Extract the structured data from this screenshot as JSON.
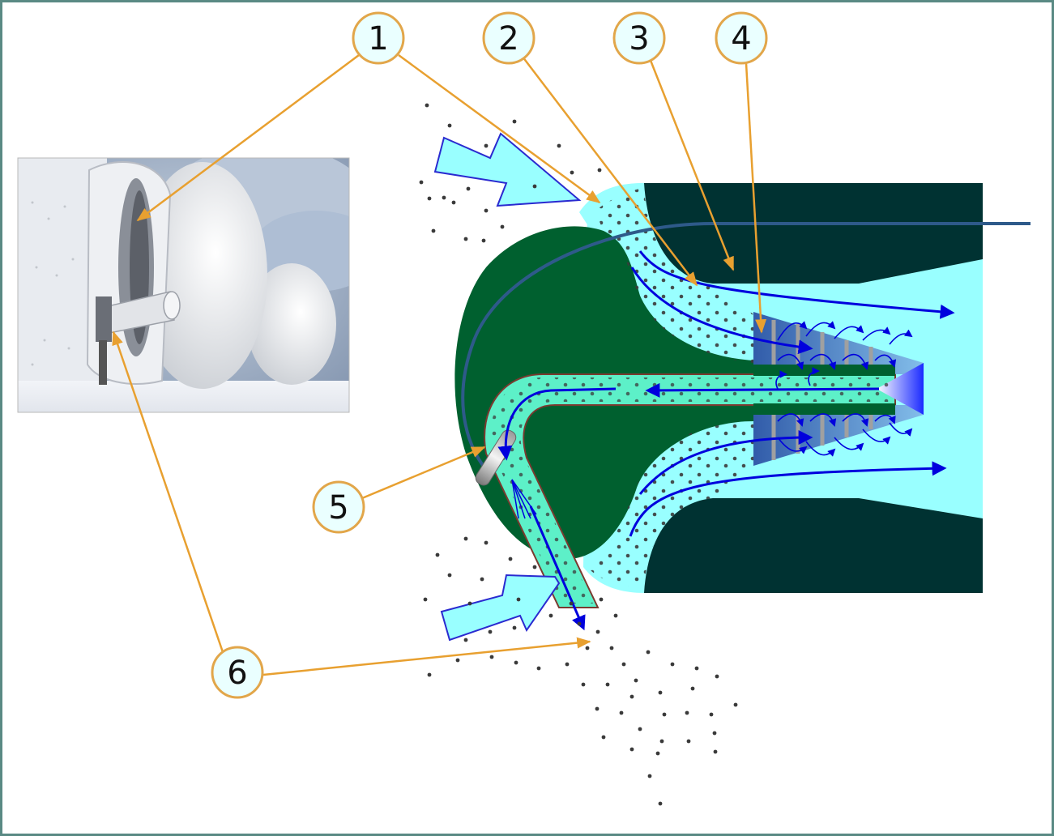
{
  "diagram": {
    "subject": "engine-air-intake-particle-separator",
    "callouts": [
      {
        "id": "c1",
        "label": "1"
      },
      {
        "id": "c2",
        "label": "2"
      },
      {
        "id": "c3",
        "label": "3"
      },
      {
        "id": "c4",
        "label": "4"
      },
      {
        "id": "c5",
        "label": "5"
      },
      {
        "id": "c6",
        "label": "6"
      }
    ],
    "colors": {
      "frame_border": "#5a8a84",
      "callout_fill": "#eaffff",
      "callout_stroke": "#e2a64a",
      "leader_line": "#e8a030",
      "engine_dark": "#003232",
      "hub_green": "#00602f",
      "air_cyan": "#99ffff",
      "duct_mint": "#5df0c8",
      "flow_arrow": "#0000dd",
      "particle": "#3a3a3a",
      "shaft_line": "#2e5a8a"
    }
  }
}
